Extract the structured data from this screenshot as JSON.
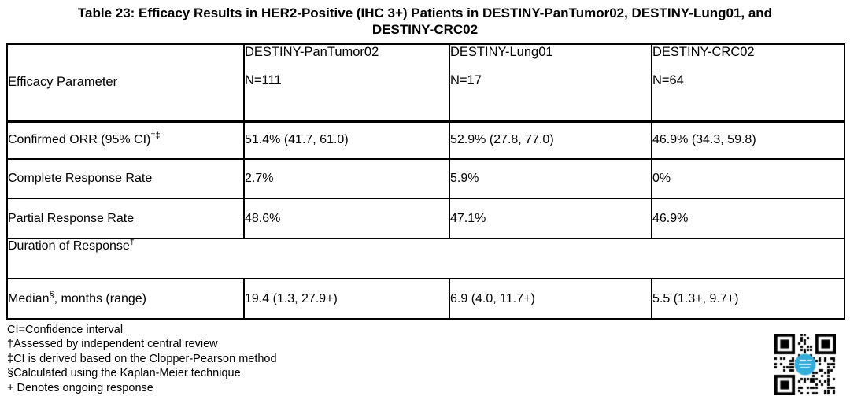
{
  "title": {
    "line1": "Table 23: Efficacy Results in HER2-Positive (IHC 3+) Patients in DESTINY-PanTumor02, DESTINY-Lung01, and",
    "line2": "DESTINY-CRC02"
  },
  "table": {
    "header": {
      "param_label": "Efficacy Parameter",
      "studies": [
        {
          "name": "DESTINY-PanTumor02",
          "n": "N=111"
        },
        {
          "name": "DESTINY-Lung01",
          "n": "N=17"
        },
        {
          "name": "DESTINY-CRC02",
          "n": "N=64"
        }
      ]
    },
    "rows": {
      "confirmed_orr": {
        "label": "Confirmed ORR (95% CI)",
        "sup": "†‡",
        "values": [
          "51.4% (41.7, 61.0)",
          "52.9% (27.8, 77.0)",
          "46.9% (34.3, 59.8)"
        ]
      },
      "complete_response": {
        "label": "Complete Response Rate",
        "values": [
          "2.7%",
          "5.9%",
          "0%"
        ]
      },
      "partial_response": {
        "label": "Partial Response Rate",
        "values": [
          "48.6%",
          "47.1%",
          "46.9%"
        ]
      },
      "duration_section": {
        "label": "Duration of Response",
        "sup": "†"
      },
      "median": {
        "label": "Median",
        "sup": "§",
        "label_suffix": ", months (range)",
        "values": [
          "19.4 (1.3, 27.9+)",
          "6.9 (4.0, 11.7+)",
          "5.5 (1.3+, 9.7+)"
        ]
      }
    }
  },
  "footnotes": [
    "CI=Confidence interval",
    "†Assessed by independent central review",
    "‡CI is derived based on the Clopper-Pearson method",
    "§Calculated using the Kaplan-Meier technique",
    "+ Denotes ongoing response"
  ],
  "qr": {
    "center_logo_color": "#35ADDB",
    "module_color": "#000000"
  }
}
